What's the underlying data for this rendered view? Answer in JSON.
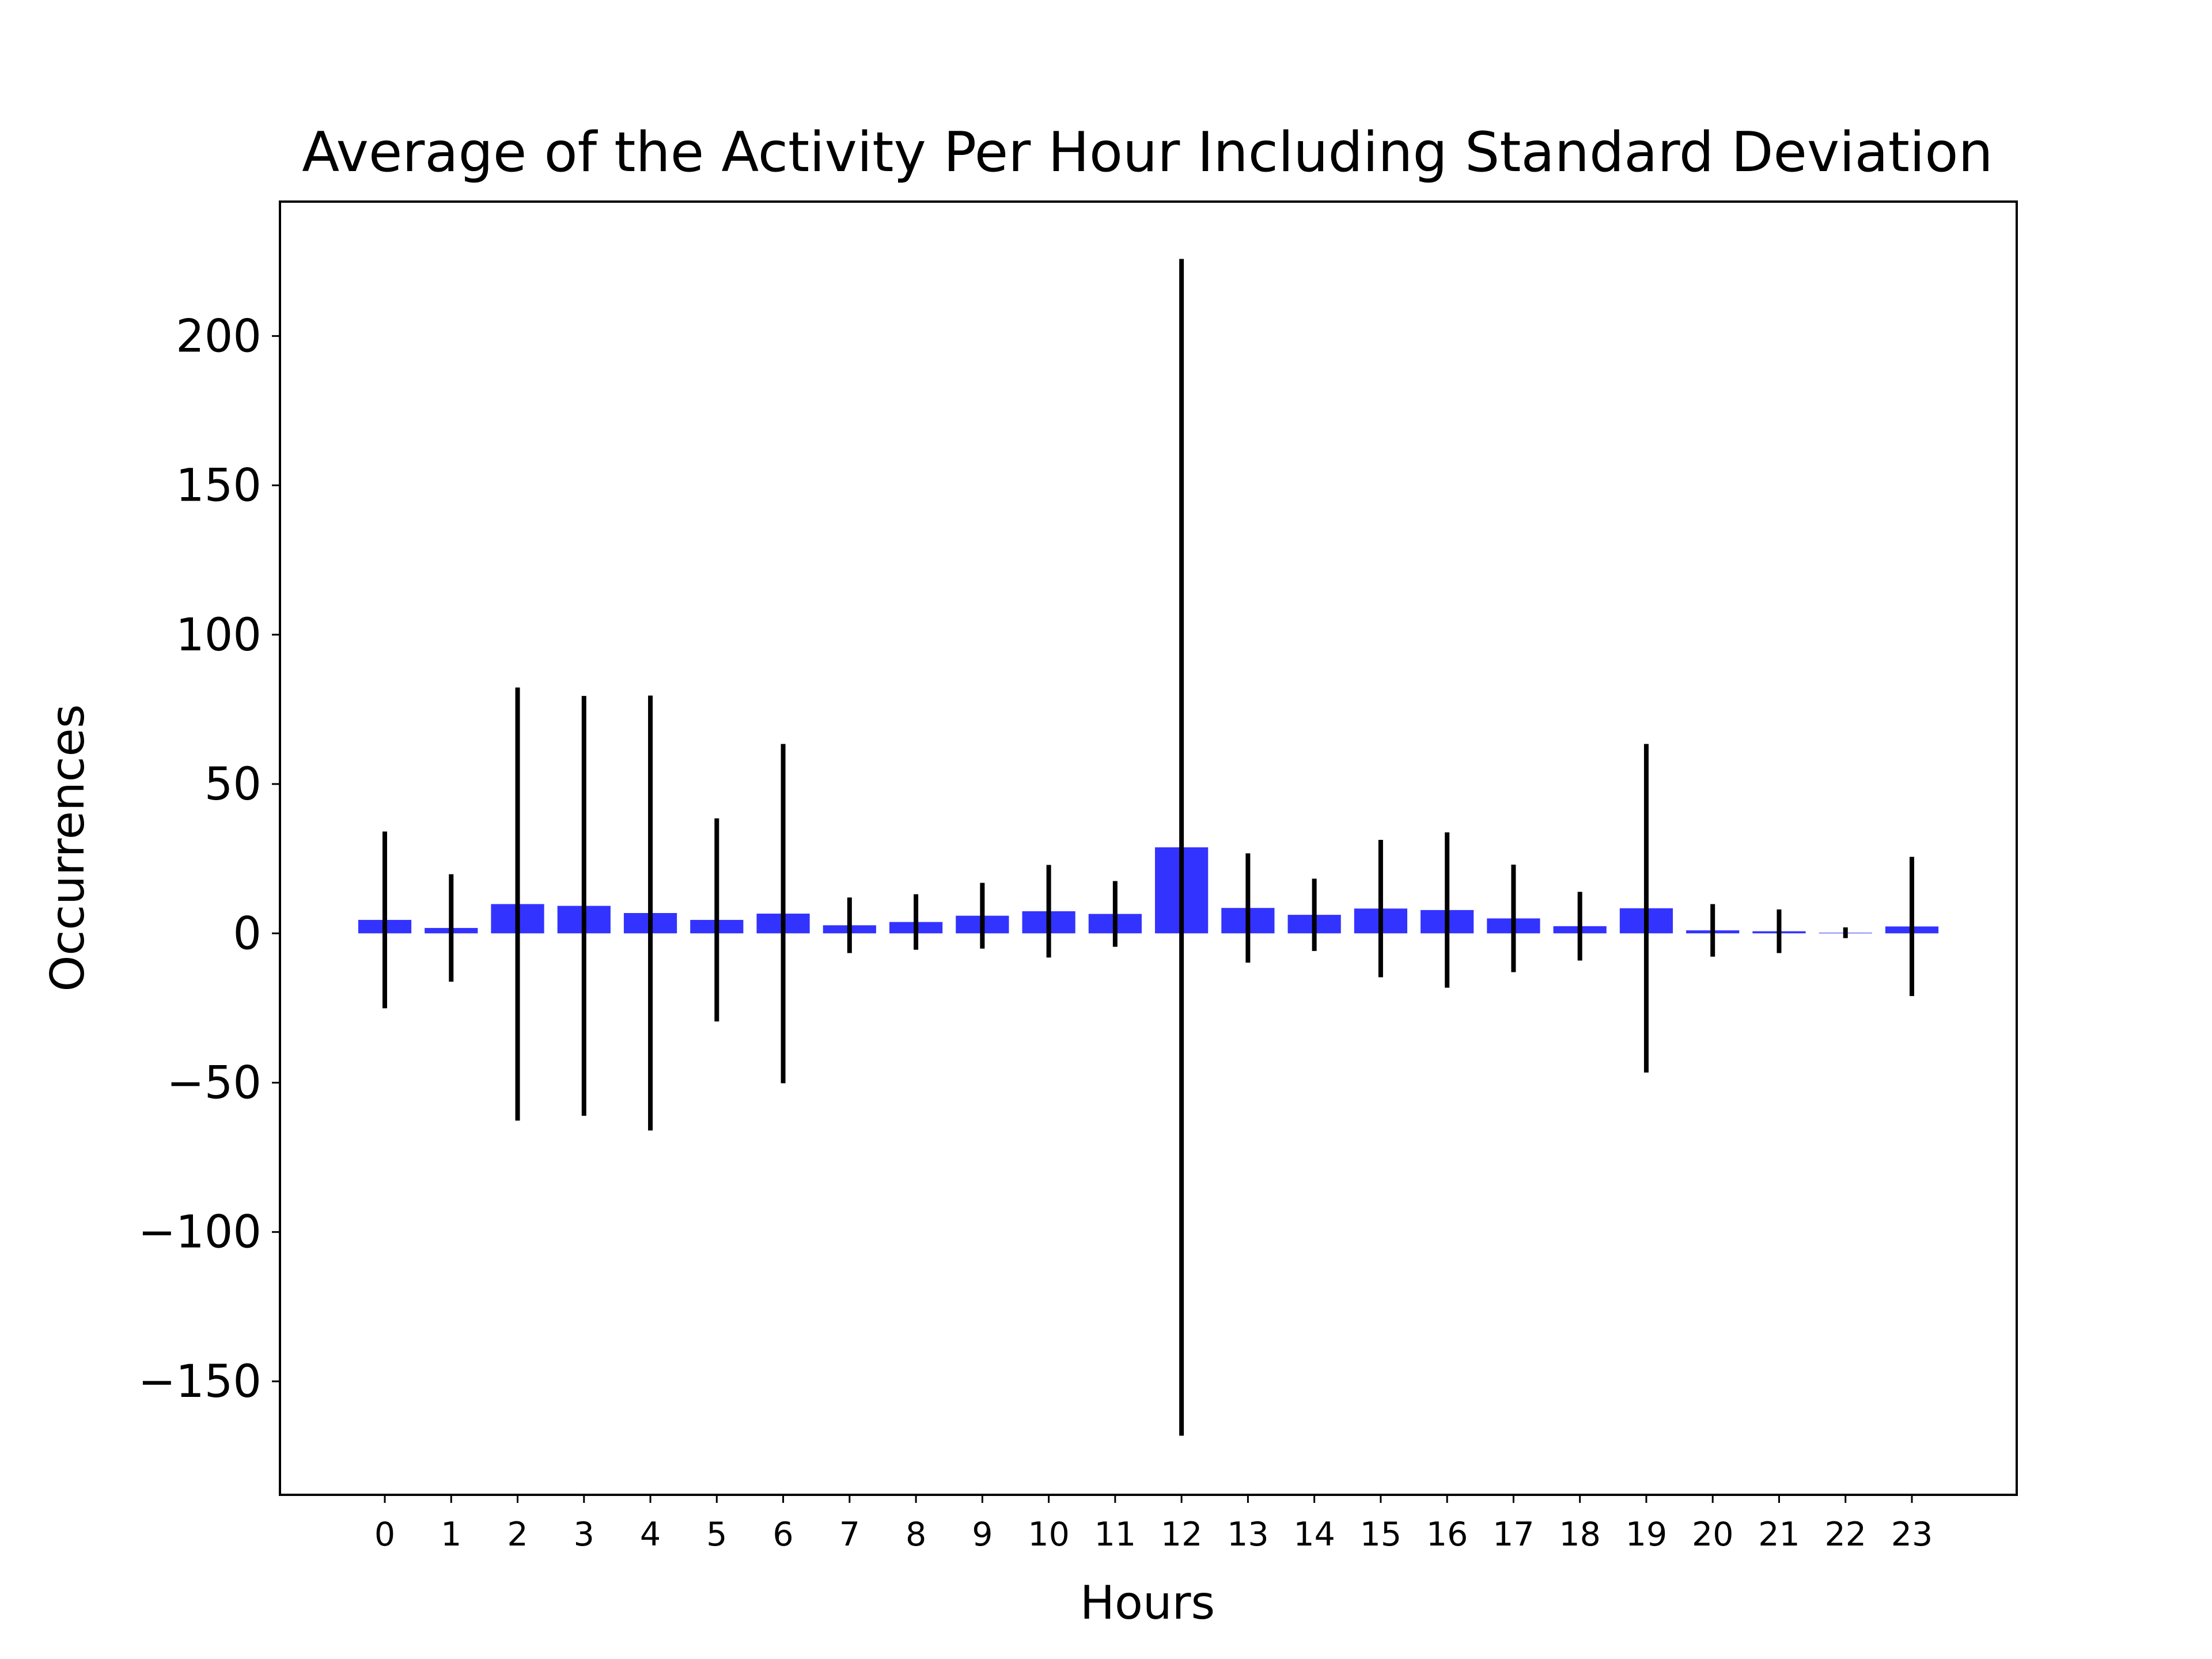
{
  "chart_data": {
    "type": "bar",
    "title": "Average of the Activity Per Hour Including Standard Deviation",
    "xlabel": "Hours",
    "ylabel": "Occurrences",
    "categories": [
      "0",
      "1",
      "2",
      "3",
      "4",
      "5",
      "6",
      "7",
      "8",
      "9",
      "10",
      "11",
      "12",
      "13",
      "14",
      "15",
      "16",
      "17",
      "18",
      "19",
      "20",
      "21",
      "22",
      "23"
    ],
    "values": [
      4.5,
      1.8,
      9.8,
      9.2,
      6.8,
      4.5,
      6.6,
      2.7,
      3.8,
      5.9,
      7.4,
      6.5,
      28.8,
      8.5,
      6.2,
      8.3,
      7.8,
      5.0,
      2.4,
      8.4,
      1.0,
      0.7,
      0.2,
      2.3
    ],
    "errors": [
      29.6,
      18.0,
      72.5,
      70.3,
      72.8,
      34.0,
      56.8,
      9.3,
      9.3,
      11.0,
      15.5,
      11.0,
      197.0,
      18.3,
      12.1,
      23.0,
      26.0,
      18.0,
      11.5,
      55.0,
      8.8,
      7.3,
      1.8,
      23.3
    ],
    "ylim": [
      -188,
      245
    ],
    "yticks": [
      200,
      150,
      100,
      50,
      0,
      -50,
      -100,
      -150
    ],
    "ytick_labels": [
      "200",
      "150",
      "100",
      "50",
      "0",
      "−50",
      "−100",
      "−150"
    ],
    "grid": false,
    "legend": "none",
    "colors": {
      "bar": "#3333ff",
      "error_bar": "#000000",
      "axes": "#000000"
    }
  }
}
